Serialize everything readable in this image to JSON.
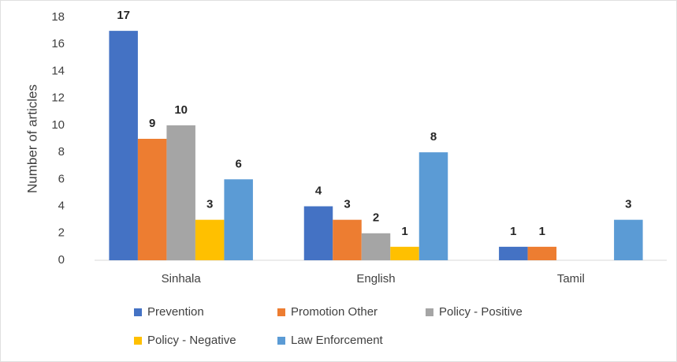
{
  "chart_data": {
    "type": "bar",
    "y_label": "Number of articles",
    "categories": [
      "Sinhala",
      "English",
      "Tamil"
    ],
    "series": [
      {
        "name": "Prevention",
        "color": "#4472c4",
        "values": [
          17,
          4,
          1
        ]
      },
      {
        "name": "Promotion Other",
        "color": "#ed7d31",
        "values": [
          9,
          3,
          1
        ]
      },
      {
        "name": "Policy - Positive",
        "color": "#a5a5a5",
        "values": [
          10,
          2,
          null
        ]
      },
      {
        "name": "Policy - Negative",
        "color": "#ffc000",
        "values": [
          3,
          1,
          null
        ]
      },
      {
        "name": "Law Enforcement",
        "color": "#5b9bd5",
        "values": [
          6,
          8,
          3
        ]
      }
    ],
    "ylim": [
      0,
      18
    ],
    "yticks": [
      0,
      2,
      4,
      6,
      8,
      10,
      12,
      14,
      16,
      18
    ],
    "grid": false
  }
}
